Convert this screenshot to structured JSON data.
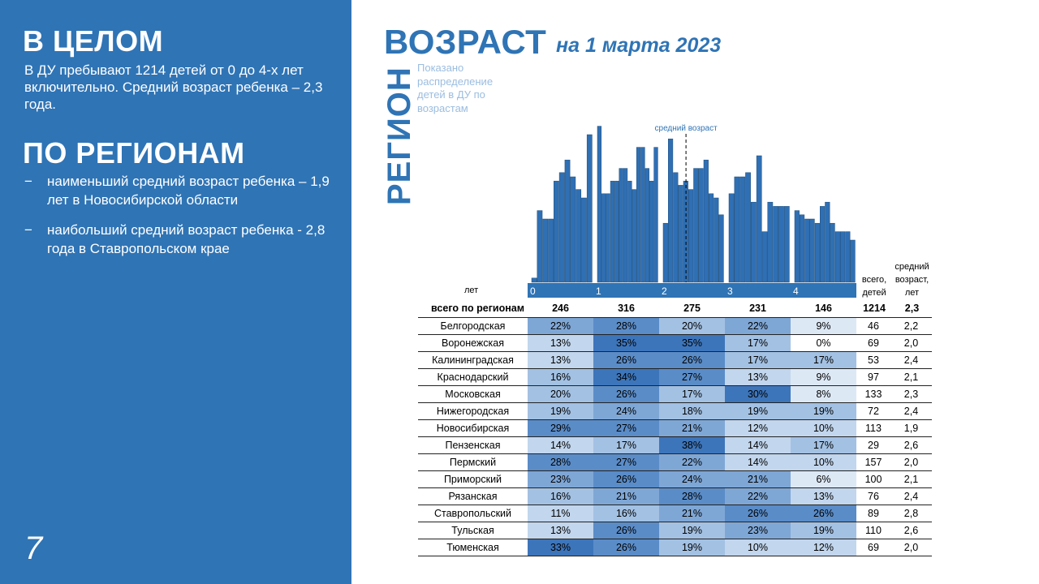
{
  "left_panel": {
    "heading_overall": "В ЦЕЛОМ",
    "overall_text": "В ДУ пребывают 1214 детей от 0 до 4-х лет включительно. Средний возраст ребенка – 2,3 года.",
    "heading_regions": "ПО РЕГИОНАМ",
    "bullets": [
      {
        "dash": "−",
        "text": "наименьший средний возраст ребенка – 1,9 лет в Новосибирской области"
      },
      {
        "dash": "−",
        "text": "наибольший средний возраст ребенка - 2,8 года в Ставропольском крае"
      }
    ],
    "page_number": "7"
  },
  "header": {
    "title": "ВОЗРАСТ",
    "subtitle": "на 1 марта 2023",
    "vertical_label": "РЕГИОН",
    "note": "Показано распределение детей в ДУ по возрастам"
  },
  "colors": {
    "panel": "#2f74b5",
    "bar_fill": "#2f6fb4",
    "bar_stroke": "#1f4e7a",
    "axis_band": "#2f74b5",
    "shade_levels": [
      "#ffffff",
      "#dde8f5",
      "#c2d6ed",
      "#a3c1e3",
      "#7fa7d6",
      "#5a8cc8",
      "#3d75ba"
    ]
  },
  "chart_data": {
    "type": "bar",
    "annotation": "средний возраст",
    "mean_line_x": 2.3,
    "x_ticks": [
      "0",
      "1",
      "2",
      "3",
      "4"
    ],
    "xlim": [
      0,
      5
    ],
    "ylim": [
      0,
      37
    ],
    "values": [
      1,
      17,
      15,
      15,
      24,
      26,
      29,
      25,
      22,
      20,
      35,
      37,
      21,
      21,
      24,
      24,
      27,
      27,
      24,
      22,
      32,
      32,
      27,
      24,
      32,
      14,
      34,
      26,
      23,
      24,
      22,
      27,
      27,
      29,
      21,
      20,
      16,
      21,
      25,
      25,
      26,
      19,
      30,
      12,
      19,
      18,
      18,
      18,
      17,
      16,
      15,
      15,
      14,
      18,
      19,
      14,
      12,
      12,
      12,
      10
    ],
    "columns": {
      "label_left": "лет",
      "total_header": "всего, детей",
      "avg_header": "средний возраст, лет"
    },
    "totals_row": {
      "label": "всего по регионам",
      "values": [
        "246",
        "316",
        "275",
        "231",
        "146"
      ],
      "total": "1214",
      "avg": "2,3"
    },
    "regions": [
      {
        "name": "Белгородская",
        "pct": [
          "22%",
          "28%",
          "20%",
          "22%",
          "9%"
        ],
        "total": "46",
        "avg": "2,2"
      },
      {
        "name": "Воронежская",
        "pct": [
          "13%",
          "35%",
          "35%",
          "17%",
          "0%"
        ],
        "total": "69",
        "avg": "2,0"
      },
      {
        "name": "Калининградская",
        "pct": [
          "13%",
          "26%",
          "26%",
          "17%",
          "17%"
        ],
        "total": "53",
        "avg": "2,4"
      },
      {
        "name": "Краснодарский",
        "pct": [
          "16%",
          "34%",
          "27%",
          "13%",
          "9%"
        ],
        "total": "97",
        "avg": "2,1"
      },
      {
        "name": "Московская",
        "pct": [
          "20%",
          "26%",
          "17%",
          "30%",
          "8%"
        ],
        "total": "133",
        "avg": "2,3"
      },
      {
        "name": "Нижегородская",
        "pct": [
          "19%",
          "24%",
          "18%",
          "19%",
          "19%"
        ],
        "total": "72",
        "avg": "2,4"
      },
      {
        "name": "Новосибирская",
        "pct": [
          "29%",
          "27%",
          "21%",
          "12%",
          "10%"
        ],
        "total": "113",
        "avg": "1,9"
      },
      {
        "name": "Пензенская",
        "pct": [
          "14%",
          "17%",
          "38%",
          "14%",
          "17%"
        ],
        "total": "29",
        "avg": "2,6"
      },
      {
        "name": "Пермский",
        "pct": [
          "28%",
          "27%",
          "22%",
          "14%",
          "10%"
        ],
        "total": "157",
        "avg": "2,0"
      },
      {
        "name": "Приморский",
        "pct": [
          "23%",
          "26%",
          "24%",
          "21%",
          "6%"
        ],
        "total": "100",
        "avg": "2,1"
      },
      {
        "name": "Рязанская",
        "pct": [
          "16%",
          "21%",
          "28%",
          "22%",
          "13%"
        ],
        "total": "76",
        "avg": "2,4"
      },
      {
        "name": "Ставропольский",
        "pct": [
          "11%",
          "16%",
          "21%",
          "26%",
          "26%"
        ],
        "total": "89",
        "avg": "2,8"
      },
      {
        "name": "Тульская",
        "pct": [
          "13%",
          "26%",
          "19%",
          "23%",
          "19%"
        ],
        "total": "110",
        "avg": "2,6"
      },
      {
        "name": "Тюменская",
        "pct": [
          "33%",
          "26%",
          "19%",
          "10%",
          "12%"
        ],
        "total": "69",
        "avg": "2,0"
      }
    ]
  }
}
